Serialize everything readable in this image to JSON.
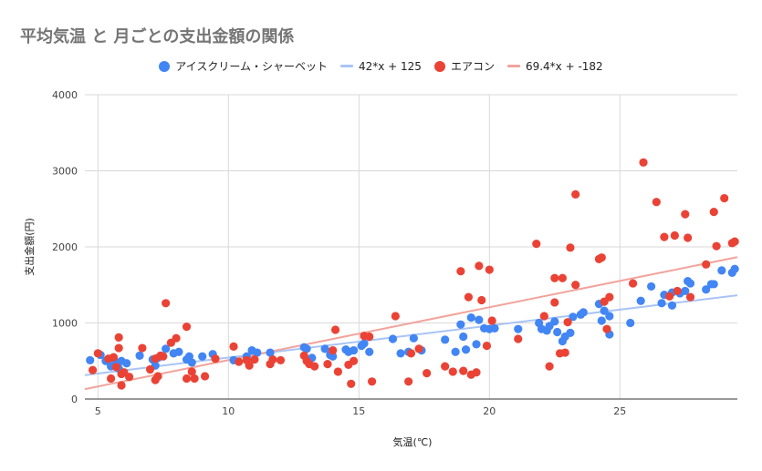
{
  "chart_data": {
    "type": "scatter",
    "title": "平均気温 と 月ごとの支出金額の関係",
    "xlabel": "気温(℃)",
    "ylabel": "支出金額(円)",
    "xlim": [
      4.5,
      29.5
    ],
    "ylim": [
      0,
      4000
    ],
    "x_ticks": [
      5,
      10,
      15,
      20,
      25
    ],
    "y_ticks": [
      0,
      1000,
      2000,
      3000,
      4000
    ],
    "grid": true,
    "legend_position": "top",
    "series": [
      {
        "name": "アイスクリーム・シャーベット",
        "color": "#4285f4",
        "points": [
          [
            4.7,
            510
          ],
          [
            5.1,
            580
          ],
          [
            5.3,
            500
          ],
          [
            5.5,
            430
          ],
          [
            5.6,
            530
          ],
          [
            5.7,
            470
          ],
          [
            5.8,
            400
          ],
          [
            5.9,
            500
          ],
          [
            6.1,
            470
          ],
          [
            6.6,
            570
          ],
          [
            7.1,
            520
          ],
          [
            7.2,
            440
          ],
          [
            7.3,
            540
          ],
          [
            7.6,
            660
          ],
          [
            7.9,
            600
          ],
          [
            8.1,
            620
          ],
          [
            8.4,
            520
          ],
          [
            8.5,
            560
          ],
          [
            8.6,
            480
          ],
          [
            9.0,
            560
          ],
          [
            9.4,
            590
          ],
          [
            10.2,
            510
          ],
          [
            10.7,
            560
          ],
          [
            10.9,
            640
          ],
          [
            11.1,
            610
          ],
          [
            11.6,
            610
          ],
          [
            12.9,
            680
          ],
          [
            13.0,
            660
          ],
          [
            13.2,
            540
          ],
          [
            13.7,
            660
          ],
          [
            13.9,
            580
          ],
          [
            14.0,
            560
          ],
          [
            14.5,
            650
          ],
          [
            14.6,
            620
          ],
          [
            14.8,
            640
          ],
          [
            15.1,
            700
          ],
          [
            15.2,
            730
          ],
          [
            15.4,
            620
          ],
          [
            16.3,
            790
          ],
          [
            16.6,
            600
          ],
          [
            16.9,
            620
          ],
          [
            17.1,
            800
          ],
          [
            17.4,
            640
          ],
          [
            18.3,
            780
          ],
          [
            18.7,
            620
          ],
          [
            18.9,
            980
          ],
          [
            19.0,
            820
          ],
          [
            19.1,
            650
          ],
          [
            19.3,
            1070
          ],
          [
            19.5,
            720
          ],
          [
            19.6,
            1040
          ],
          [
            19.8,
            930
          ],
          [
            20.0,
            920
          ],
          [
            20.2,
            930
          ],
          [
            21.1,
            920
          ],
          [
            21.9,
            1000
          ],
          [
            22.0,
            920
          ],
          [
            22.2,
            900
          ],
          [
            22.3,
            960
          ],
          [
            22.5,
            1020
          ],
          [
            22.6,
            880
          ],
          [
            22.8,
            760
          ],
          [
            22.9,
            820
          ],
          [
            23.1,
            870
          ],
          [
            23.2,
            1080
          ],
          [
            23.5,
            1110
          ],
          [
            23.6,
            1140
          ],
          [
            24.2,
            1250
          ],
          [
            24.3,
            1030
          ],
          [
            24.4,
            1160
          ],
          [
            24.6,
            1090
          ],
          [
            24.6,
            850
          ],
          [
            25.4,
            1000
          ],
          [
            25.8,
            1290
          ],
          [
            26.2,
            1480
          ],
          [
            26.6,
            1260
          ],
          [
            26.7,
            1370
          ],
          [
            27.0,
            1230
          ],
          [
            27.0,
            1400
          ],
          [
            27.3,
            1390
          ],
          [
            27.5,
            1420
          ],
          [
            27.6,
            1550
          ],
          [
            27.7,
            1520
          ],
          [
            28.3,
            1440
          ],
          [
            28.5,
            1510
          ],
          [
            28.6,
            1510
          ],
          [
            28.9,
            1690
          ],
          [
            29.3,
            1660
          ],
          [
            29.4,
            1710
          ]
        ]
      },
      {
        "name": "エアコン",
        "color": "#ea4335",
        "points": [
          [
            4.8,
            380
          ],
          [
            5.0,
            600
          ],
          [
            5.4,
            530
          ],
          [
            5.5,
            270
          ],
          [
            5.6,
            550
          ],
          [
            5.7,
            420
          ],
          [
            5.8,
            670
          ],
          [
            5.8,
            810
          ],
          [
            5.9,
            330
          ],
          [
            5.9,
            180
          ],
          [
            6.0,
            350
          ],
          [
            6.2,
            290
          ],
          [
            6.7,
            670
          ],
          [
            7.0,
            390
          ],
          [
            7.2,
            250
          ],
          [
            7.2,
            530
          ],
          [
            7.3,
            300
          ],
          [
            7.4,
            570
          ],
          [
            7.5,
            560
          ],
          [
            7.6,
            1260
          ],
          [
            7.8,
            740
          ],
          [
            8.0,
            800
          ],
          [
            8.4,
            950
          ],
          [
            8.4,
            270
          ],
          [
            8.6,
            360
          ],
          [
            8.7,
            270
          ],
          [
            9.1,
            300
          ],
          [
            9.5,
            530
          ],
          [
            10.2,
            690
          ],
          [
            10.4,
            490
          ],
          [
            10.7,
            510
          ],
          [
            10.8,
            440
          ],
          [
            11.0,
            520
          ],
          [
            11.6,
            460
          ],
          [
            11.7,
            520
          ],
          [
            12.0,
            510
          ],
          [
            12.9,
            570
          ],
          [
            13.0,
            500
          ],
          [
            13.1,
            460
          ],
          [
            13.3,
            430
          ],
          [
            13.8,
            460
          ],
          [
            14.0,
            640
          ],
          [
            14.1,
            910
          ],
          [
            14.2,
            360
          ],
          [
            14.6,
            450
          ],
          [
            14.7,
            200
          ],
          [
            14.8,
            500
          ],
          [
            15.2,
            830
          ],
          [
            15.4,
            820
          ],
          [
            15.5,
            230
          ],
          [
            16.4,
            1090
          ],
          [
            16.9,
            230
          ],
          [
            17.0,
            600
          ],
          [
            17.3,
            660
          ],
          [
            17.6,
            340
          ],
          [
            18.3,
            430
          ],
          [
            18.6,
            360
          ],
          [
            18.9,
            1680
          ],
          [
            19.0,
            370
          ],
          [
            19.2,
            1340
          ],
          [
            19.3,
            320
          ],
          [
            19.5,
            350
          ],
          [
            19.6,
            1750
          ],
          [
            19.7,
            1300
          ],
          [
            19.9,
            700
          ],
          [
            20.0,
            1700
          ],
          [
            20.1,
            1030
          ],
          [
            21.1,
            790
          ],
          [
            21.8,
            2040
          ],
          [
            22.1,
            1090
          ],
          [
            22.3,
            430
          ],
          [
            22.5,
            1270
          ],
          [
            22.5,
            1590
          ],
          [
            22.7,
            600
          ],
          [
            22.8,
            1590
          ],
          [
            22.9,
            610
          ],
          [
            23.0,
            1010
          ],
          [
            23.1,
            1990
          ],
          [
            23.3,
            1500
          ],
          [
            23.3,
            2690
          ],
          [
            24.2,
            1840
          ],
          [
            24.3,
            1860
          ],
          [
            24.4,
            1280
          ],
          [
            24.5,
            920
          ],
          [
            24.6,
            1340
          ],
          [
            25.5,
            1520
          ],
          [
            25.9,
            3110
          ],
          [
            26.4,
            2590
          ],
          [
            26.7,
            2130
          ],
          [
            26.9,
            1350
          ],
          [
            27.1,
            2150
          ],
          [
            27.2,
            1420
          ],
          [
            27.5,
            2430
          ],
          [
            27.6,
            2120
          ],
          [
            27.7,
            1340
          ],
          [
            28.3,
            1770
          ],
          [
            28.6,
            2460
          ],
          [
            28.7,
            2010
          ],
          [
            29.0,
            2640
          ],
          [
            29.3,
            2050
          ],
          [
            29.4,
            2070
          ]
        ]
      }
    ],
    "trendlines": [
      {
        "name": "42*x + 125",
        "slope": 42,
        "intercept": 125,
        "color": "#a9c4f5"
      },
      {
        "name": "69.4*x + -182",
        "slope": 69.4,
        "intercept": -182,
        "color": "#f2a39c"
      }
    ]
  }
}
